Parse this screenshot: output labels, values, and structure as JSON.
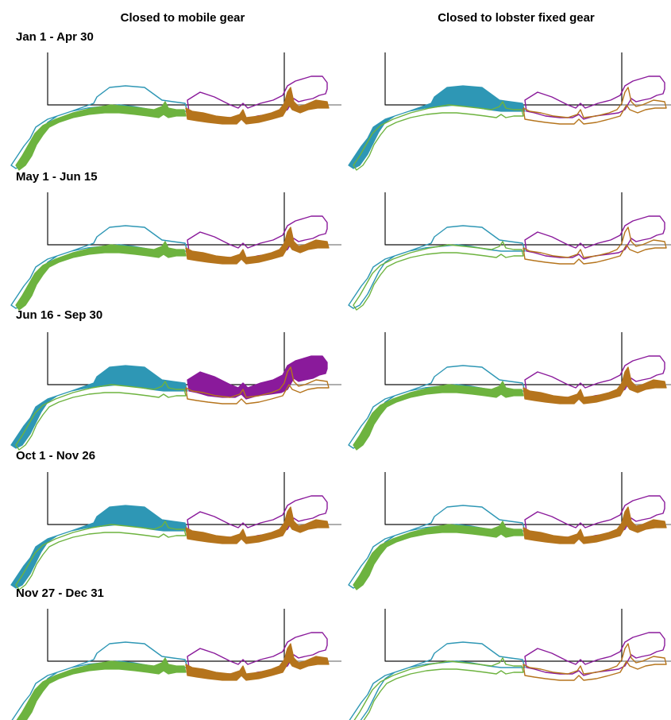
{
  "columns": [
    {
      "title": "Closed to mobile gear"
    },
    {
      "title": "Closed to lobster fixed gear"
    }
  ],
  "periods": [
    {
      "label": "Jan 1 - Apr 30",
      "closed": [
        [
          "green",
          "brown"
        ],
        [
          "blue"
        ]
      ]
    },
    {
      "label": "May 1 - Jun 15",
      "closed": [
        [
          "green",
          "brown"
        ],
        []
      ]
    },
    {
      "label": "Jun 16 - Sep 30",
      "closed": [
        [
          "blue",
          "purple"
        ],
        [
          "green",
          "brown"
        ]
      ]
    },
    {
      "label": "Oct 1 - Nov 26",
      "closed": [
        [
          "blue",
          "brown"
        ],
        [
          "green",
          "brown"
        ]
      ]
    },
    {
      "label": "Nov 27 - Dec 31",
      "closed": [
        [
          "green",
          "brown"
        ],
        []
      ]
    }
  ],
  "zones": {
    "blue": {
      "color": "#2e97b5"
    },
    "green": {
      "color": "#6db33f"
    },
    "brown": {
      "color": "#b5741c"
    },
    "purple": {
      "color": "#8a1a9b"
    }
  }
}
